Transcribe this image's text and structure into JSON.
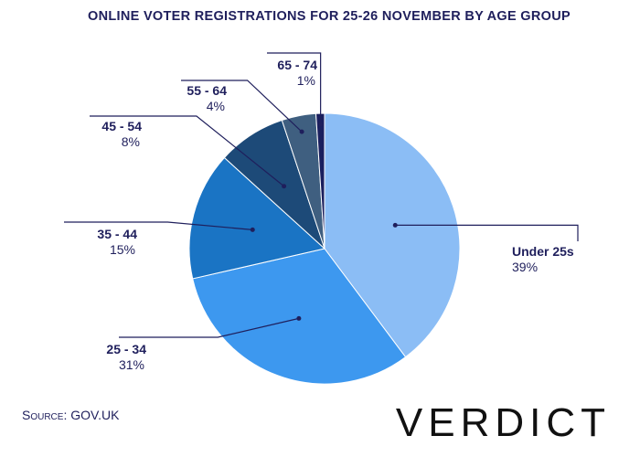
{
  "source_text": "Source: GOV.UK",
  "brand": "VERDICT",
  "chart_data": {
    "type": "pie",
    "title": "ONLINE VOTER REGISTRATIONS FOR 25-26 NOVEMBER BY AGE GROUP",
    "categories": [
      "Under 25s",
      "25 - 34",
      "35 - 44",
      "45 - 54",
      "55 - 64",
      "65 - 74"
    ],
    "values": [
      39,
      31,
      15,
      8,
      4,
      1
    ],
    "value_labels": [
      "39%",
      "31%",
      "15%",
      "8%",
      "4%",
      "1%"
    ],
    "colors": [
      "#8bbdf5",
      "#3d98ef",
      "#1a74c4",
      "#1d4a78",
      "#3f5f80",
      "#1a1f5e"
    ],
    "start": "top, clockwise",
    "legend": "none (direct labels)"
  }
}
